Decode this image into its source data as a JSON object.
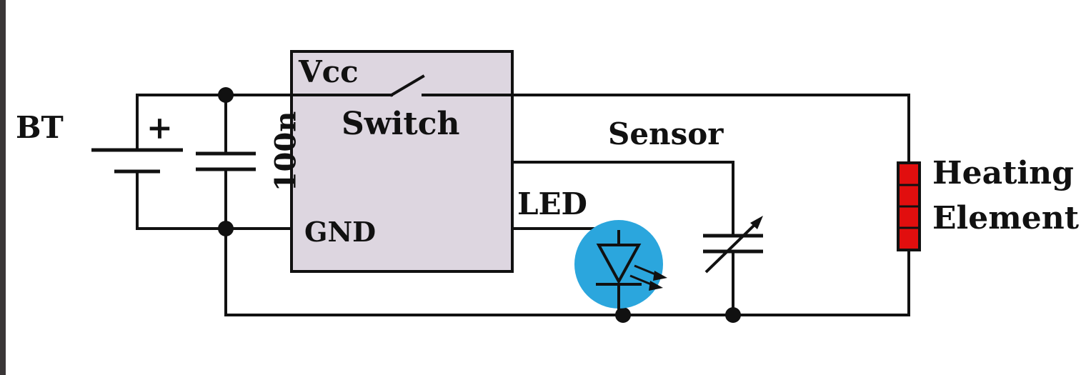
{
  "labels": {
    "battery": "BT",
    "battery_polarity": "+",
    "capacitor_value": "100n",
    "module_vcc": "Vcc",
    "module_switch": "Switch",
    "module_gnd": "GND",
    "led": "LED",
    "sensor": "Sensor",
    "heating_line1": "Heating",
    "heating_line2": "Element"
  },
  "colors": {
    "module_fill": "#ddd6e0",
    "led_circle": "#2ba6dd",
    "heater_fill": "#e10e0e",
    "wire": "#111111",
    "frame": "#3a3637"
  }
}
